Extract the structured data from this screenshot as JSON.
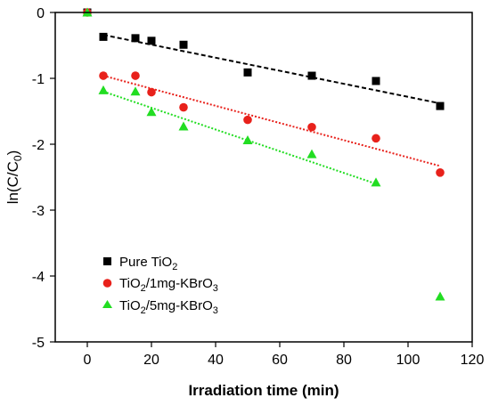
{
  "chart_data": {
    "type": "scatter",
    "xlabel": "Irradiation time (min)",
    "ylabel": "ln(C/C0)",
    "ylabel_parts": {
      "main": "ln(C/C",
      "sub": "0",
      "close": ")"
    },
    "xlim": [
      -10,
      120
    ],
    "ylim": [
      -5,
      0
    ],
    "xticks": [
      0,
      20,
      40,
      60,
      80,
      100,
      120
    ],
    "yticks": [
      0,
      -1,
      -2,
      -3,
      -4,
      -5
    ],
    "legend_position": "lower-left",
    "series": [
      {
        "name": "Pure TiO2",
        "legend_parts": {
          "main": "Pure TiO",
          "sub": "2",
          "rest": ""
        },
        "marker": "square",
        "color": "#000000",
        "x": [
          0,
          5,
          15,
          20,
          30,
          50,
          70,
          90,
          110
        ],
        "y": [
          0,
          -0.37,
          -0.39,
          -0.43,
          -0.49,
          -0.91,
          -0.96,
          -1.04,
          -1.42
        ],
        "fit": {
          "x": [
            5,
            110
          ],
          "y": [
            -0.34,
            -1.38
          ],
          "style": "dashed"
        }
      },
      {
        "name": "TiO2/1mg-KBrO3",
        "legend_parts": {
          "main": "TiO",
          "sub": "2",
          "rest": "/1mg-KBrO",
          "sub2": "3"
        },
        "marker": "circle",
        "color": "#e8211b",
        "x": [
          0,
          5,
          15,
          20,
          30,
          50,
          70,
          90,
          110
        ],
        "y": [
          0,
          -0.96,
          -0.96,
          -1.21,
          -1.44,
          -1.63,
          -1.74,
          -1.91,
          -2.43
        ],
        "fit": {
          "x": [
            5,
            110
          ],
          "y": [
            -0.96,
            -2.33
          ],
          "style": "dotted"
        }
      },
      {
        "name": "TiO2/5mg-KBrO3",
        "legend_parts": {
          "main": "TiO",
          "sub": "2",
          "rest": "/5mg-KBrO",
          "sub2": "3"
        },
        "marker": "triangle",
        "color": "#22dd22",
        "x": [
          0,
          5,
          15,
          20,
          30,
          50,
          70,
          90,
          110
        ],
        "y": [
          0,
          -1.18,
          -1.2,
          -1.51,
          -1.73,
          -1.94,
          -2.15,
          -2.58,
          -4.31
        ],
        "fit": {
          "x": [
            5,
            90
          ],
          "y": [
            -1.2,
            -2.6
          ],
          "style": "dotted"
        }
      }
    ]
  }
}
